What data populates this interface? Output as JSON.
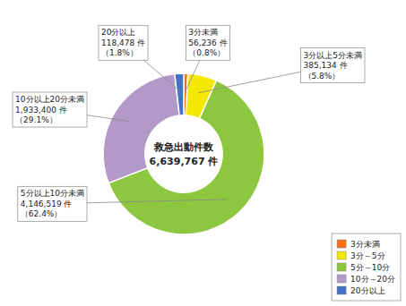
{
  "chart_data": {
    "type": "pie",
    "donut": true,
    "title": "救急出動件数",
    "subtitle": "6,639,767 件",
    "categories": [
      "3分未満",
      "3分～5分",
      "5分～10分",
      "10分～20分",
      "20分以上"
    ],
    "values": [
      56236,
      385134,
      4146519,
      1933400,
      118478
    ],
    "value_labels": [
      "3分未満\n56,236 件\n（0.8%）",
      "3分以上5分未満\n385,134 件\n（5.8%）",
      "5分以上10分未満\n4,146,519 件\n（62.4%）",
      "10分以上20分未満\n1,933,400 件\n（29.1%）",
      "20分以上\n118,478 件\n（1.8%）"
    ],
    "colors": [
      "#f97316",
      "#f5e800",
      "#8dc63f",
      "#b399c8",
      "#4472c4"
    ],
    "data_labels": true,
    "legend": "lower right"
  }
}
